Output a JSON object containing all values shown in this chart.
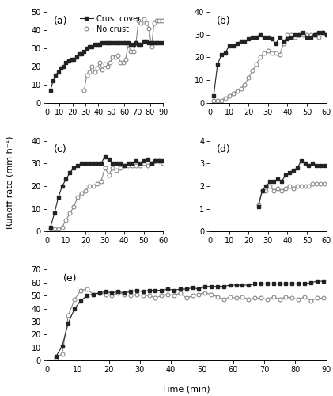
{
  "panels": [
    {
      "label": "(a)",
      "xlim": [
        0,
        90
      ],
      "ylim": [
        0,
        50
      ],
      "xticks": [
        0,
        10,
        20,
        30,
        40,
        50,
        60,
        70,
        80,
        90
      ],
      "yticks": [
        0,
        10,
        20,
        30,
        40,
        50
      ],
      "crust_x": [
        3,
        5,
        7,
        9,
        11,
        13,
        15,
        17,
        19,
        21,
        23,
        25,
        27,
        29,
        31,
        33,
        35,
        37,
        39,
        41,
        43,
        45,
        47,
        49,
        51,
        53,
        55,
        57,
        59,
        61,
        63,
        65,
        67,
        69,
        71,
        73,
        75,
        77,
        79,
        81,
        83,
        85,
        87,
        89
      ],
      "crust_y": [
        7,
        12,
        15,
        17,
        19,
        20,
        22,
        23,
        24,
        24,
        25,
        27,
        27,
        28,
        30,
        31,
        31,
        32,
        32,
        32,
        33,
        33,
        33,
        33,
        33,
        33,
        33,
        33,
        33,
        33,
        33,
        32,
        32,
        33,
        32,
        32,
        34,
        34,
        33,
        33,
        33,
        33,
        33,
        33
      ],
      "nocrust_x": [
        29,
        31,
        33,
        35,
        37,
        39,
        41,
        43,
        45,
        47,
        49,
        51,
        53,
        55,
        57,
        59,
        61,
        63,
        65,
        67,
        69,
        71,
        73,
        75,
        77,
        79,
        81,
        83,
        85,
        87,
        89
      ],
      "nocrust_y": [
        7,
        15,
        17,
        20,
        17,
        19,
        22,
        18,
        21,
        20,
        22,
        25,
        25,
        26,
        22,
        22,
        24,
        32,
        28,
        28,
        33,
        45,
        44,
        46,
        44,
        41,
        31,
        44,
        45,
        45,
        45
      ]
    },
    {
      "label": "(b)",
      "xlim": [
        0,
        60
      ],
      "ylim": [
        0,
        40
      ],
      "xticks": [
        0,
        10,
        20,
        30,
        40,
        50,
        60
      ],
      "yticks": [
        0,
        10,
        20,
        30,
        40
      ],
      "crust_x": [
        2,
        4,
        6,
        8,
        10,
        12,
        14,
        16,
        18,
        20,
        22,
        24,
        26,
        28,
        30,
        32,
        34,
        36,
        38,
        40,
        42,
        44,
        46,
        48,
        50,
        52,
        54,
        56,
        58,
        60
      ],
      "crust_y": [
        3,
        17,
        21,
        22,
        25,
        25,
        26,
        27,
        27,
        28,
        29,
        29,
        30,
        29,
        29,
        28,
        26,
        29,
        27,
        28,
        29,
        30,
        30,
        31,
        29,
        29,
        30,
        31,
        31,
        30
      ],
      "nocrust_x": [
        2,
        4,
        6,
        8,
        10,
        12,
        14,
        16,
        18,
        20,
        22,
        24,
        26,
        28,
        30,
        32,
        34,
        36,
        38,
        40,
        42,
        44,
        46,
        48,
        50,
        52,
        54,
        56,
        58,
        60
      ],
      "nocrust_y": [
        1,
        1,
        1,
        2,
        3,
        4,
        5,
        6,
        8,
        11,
        14,
        17,
        20,
        22,
        23,
        22,
        22,
        21,
        26,
        30,
        30,
        29,
        30,
        30,
        30,
        30,
        30,
        29,
        31,
        30
      ]
    },
    {
      "label": "(c)",
      "xlim": [
        0,
        60
      ],
      "ylim": [
        0,
        40
      ],
      "xticks": [
        0,
        10,
        20,
        30,
        40,
        50,
        60
      ],
      "yticks": [
        0,
        10,
        20,
        30,
        40
      ],
      "crust_x": [
        2,
        4,
        6,
        8,
        10,
        12,
        14,
        16,
        18,
        20,
        22,
        24,
        26,
        28,
        30,
        32,
        34,
        36,
        38,
        40,
        42,
        44,
        46,
        48,
        50,
        52,
        54,
        56,
        58,
        60
      ],
      "crust_y": [
        2,
        8,
        15,
        20,
        23,
        26,
        28,
        29,
        30,
        30,
        30,
        30,
        30,
        30,
        33,
        32,
        30,
        30,
        30,
        29,
        30,
        30,
        31,
        30,
        31,
        32,
        30,
        31,
        31,
        31
      ],
      "nocrust_x": [
        2,
        4,
        6,
        8,
        10,
        12,
        14,
        16,
        18,
        20,
        22,
        24,
        26,
        28,
        30,
        32,
        34,
        36,
        38,
        40,
        42,
        44,
        46,
        48,
        50,
        52,
        54,
        56,
        58,
        60
      ],
      "nocrust_y": [
        1,
        1,
        1,
        2,
        5,
        8,
        11,
        15,
        17,
        18,
        20,
        20,
        21,
        22,
        28,
        25,
        28,
        27,
        28,
        29,
        29,
        29,
        29,
        29,
        30,
        29,
        30,
        31,
        31,
        30
      ]
    },
    {
      "label": "(d)",
      "xlim": [
        0,
        60
      ],
      "ylim": [
        0,
        4
      ],
      "xticks": [
        0,
        10,
        20,
        30,
        40,
        50,
        60
      ],
      "yticks": [
        0,
        1,
        2,
        3,
        4
      ],
      "crust_x": [
        25,
        27,
        29,
        31,
        33,
        35,
        37,
        39,
        41,
        43,
        45,
        47,
        49,
        51,
        53,
        55,
        57,
        59
      ],
      "crust_y": [
        1.1,
        1.8,
        2.0,
        2.2,
        2.2,
        2.3,
        2.2,
        2.5,
        2.6,
        2.7,
        2.8,
        3.1,
        3.0,
        2.9,
        3.0,
        2.9,
        2.9,
        2.9
      ],
      "nocrust_x": [
        25,
        27,
        29,
        31,
        33,
        35,
        37,
        39,
        41,
        43,
        45,
        47,
        49,
        51,
        53,
        55,
        57,
        59
      ],
      "nocrust_y": [
        1.2,
        1.8,
        1.8,
        2.0,
        1.8,
        1.9,
        1.8,
        1.9,
        2.0,
        1.9,
        2.0,
        2.0,
        2.0,
        2.0,
        2.1,
        2.1,
        2.1,
        2.1
      ]
    },
    {
      "label": "(e)",
      "xlim": [
        0,
        90
      ],
      "ylim": [
        0,
        70
      ],
      "xticks": [
        0,
        10,
        20,
        30,
        40,
        50,
        60,
        70,
        80,
        90
      ],
      "yticks": [
        0,
        10,
        20,
        30,
        40,
        50,
        60,
        70
      ],
      "crust_x": [
        3,
        5,
        7,
        9,
        11,
        13,
        15,
        17,
        19,
        21,
        23,
        25,
        27,
        29,
        31,
        33,
        35,
        37,
        39,
        41,
        43,
        45,
        47,
        49,
        51,
        53,
        55,
        57,
        59,
        61,
        63,
        65,
        67,
        69,
        71,
        73,
        75,
        77,
        79,
        81,
        83,
        85,
        87,
        89
      ],
      "crust_y": [
        3,
        11,
        29,
        40,
        46,
        50,
        51,
        52,
        53,
        52,
        53,
        52,
        53,
        54,
        53,
        54,
        54,
        54,
        55,
        54,
        55,
        55,
        56,
        55,
        57,
        57,
        57,
        57,
        58,
        58,
        58,
        58,
        59,
        59,
        59,
        59,
        59,
        59,
        59,
        59,
        59,
        60,
        61,
        61
      ],
      "nocrust_x": [
        3,
        5,
        7,
        9,
        11,
        13,
        15,
        17,
        19,
        21,
        23,
        25,
        27,
        29,
        31,
        33,
        35,
        37,
        39,
        41,
        43,
        45,
        47,
        49,
        51,
        53,
        55,
        57,
        59,
        61,
        63,
        65,
        67,
        69,
        71,
        73,
        75,
        77,
        79,
        81,
        83,
        85,
        87,
        89
      ],
      "nocrust_y": [
        2,
        5,
        35,
        47,
        54,
        55,
        51,
        52,
        51,
        50,
        52,
        51,
        50,
        51,
        50,
        50,
        48,
        50,
        51,
        50,
        52,
        48,
        50,
        51,
        52,
        51,
        49,
        47,
        49,
        48,
        49,
        47,
        48,
        48,
        47,
        49,
        47,
        49,
        48,
        47,
        49,
        46,
        48,
        48
      ]
    }
  ],
  "legend_labels": [
    "Crust cover",
    "No crust"
  ],
  "ylabel": "Runoff rate (mm h⁻¹)",
  "xlabel": "Time (min)",
  "crust_color": "#222222",
  "nocrust_color": "#888888",
  "bg_color": "#ffffff",
  "marker_filled": "s",
  "marker_open": "o",
  "markersize": 3.5,
  "linewidth": 0.8,
  "legend_fontsize": 7,
  "label_fontsize": 8,
  "tick_fontsize": 7,
  "panel_label_fontsize": 9
}
